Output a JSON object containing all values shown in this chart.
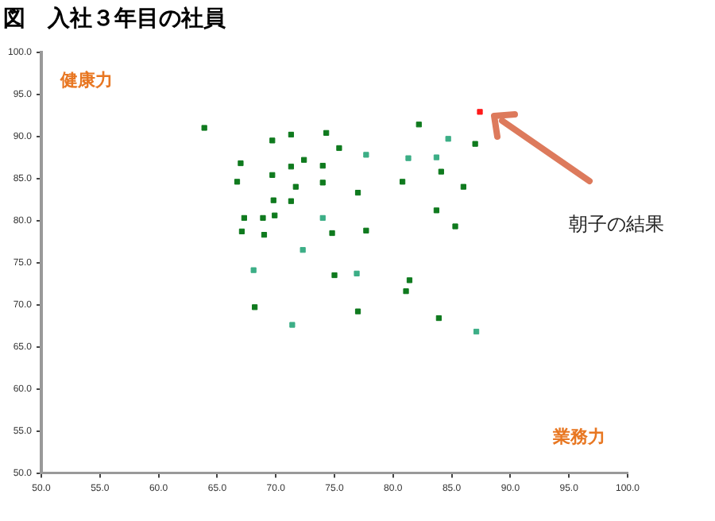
{
  "chart_data": {
    "type": "scatter",
    "title": "図　入社３年目の社員",
    "xlabel": "業務力",
    "ylabel": "健康力",
    "marker": "square",
    "grid": false,
    "legend": false,
    "xlim": [
      50,
      100
    ],
    "ylim": [
      50,
      100
    ],
    "xticks": [
      {
        "value": 50,
        "label": "50.0"
      },
      {
        "value": 55,
        "label": "55.0"
      },
      {
        "value": 60,
        "label": "60.0"
      },
      {
        "value": 65,
        "label": "65.0"
      },
      {
        "value": 70,
        "label": "70.0"
      },
      {
        "value": 75,
        "label": "75.0"
      },
      {
        "value": 80,
        "label": "80.0"
      },
      {
        "value": 85,
        "label": "85.0"
      },
      {
        "value": 90,
        "label": "90.0"
      },
      {
        "value": 95,
        "label": "95.0"
      },
      {
        "value": 100,
        "label": "100.0"
      }
    ],
    "yticks": [
      {
        "value": 50,
        "label": "50.0"
      },
      {
        "value": 55,
        "label": "55.0"
      },
      {
        "value": 60,
        "label": "60.0"
      },
      {
        "value": 65,
        "label": "65.0"
      },
      {
        "value": 70,
        "label": "70.0"
      },
      {
        "value": 75,
        "label": "75.0"
      },
      {
        "value": 80,
        "label": "80.0"
      },
      {
        "value": 85,
        "label": "85.0"
      },
      {
        "value": 90,
        "label": "90.0"
      },
      {
        "value": 95,
        "label": "95.0"
      },
      {
        "value": 100,
        "label": "100.0"
      }
    ],
    "annotations": [
      "朝子の結果"
    ],
    "series": [
      {
        "color": "#0f7a1e",
        "x": [
          63.9,
          69.7,
          71.3,
          74.3,
          75.4,
          67.0,
          72.4,
          71.3,
          74.0,
          69.7,
          66.7,
          74.0,
          71.7,
          77.0,
          69.8,
          71.3,
          67.3,
          68.9,
          69.9,
          67.1,
          69.0,
          74.8,
          75.0,
          68.2,
          77.0,
          82.2,
          87.0,
          84.1,
          80.8,
          86.0,
          83.7,
          85.3,
          77.7,
          81.4,
          81.1,
          83.9
        ],
        "values": [
          91.0,
          89.5,
          90.2,
          90.4,
          88.6,
          86.8,
          87.2,
          86.4,
          86.5,
          85.4,
          84.6,
          84.5,
          84.0,
          83.3,
          82.4,
          82.3,
          80.3,
          80.3,
          80.6,
          78.7,
          78.3,
          78.5,
          73.5,
          69.7,
          69.2,
          91.4,
          89.1,
          85.8,
          84.6,
          84.0,
          81.2,
          79.3,
          78.8,
          72.9,
          71.6,
          68.4
        ]
      },
      {
        "color": "#3cae86",
        "x": [
          74.0,
          72.3,
          68.1,
          76.9,
          71.4,
          77.7,
          84.7,
          81.3,
          83.7,
          87.1
        ],
        "values": [
          80.3,
          76.5,
          74.1,
          73.7,
          67.6,
          87.8,
          89.7,
          87.4,
          87.5,
          66.8
        ]
      },
      {
        "color": "#ff1a1a",
        "x": [
          87.4
        ],
        "values": [
          92.9
        ]
      }
    ]
  }
}
